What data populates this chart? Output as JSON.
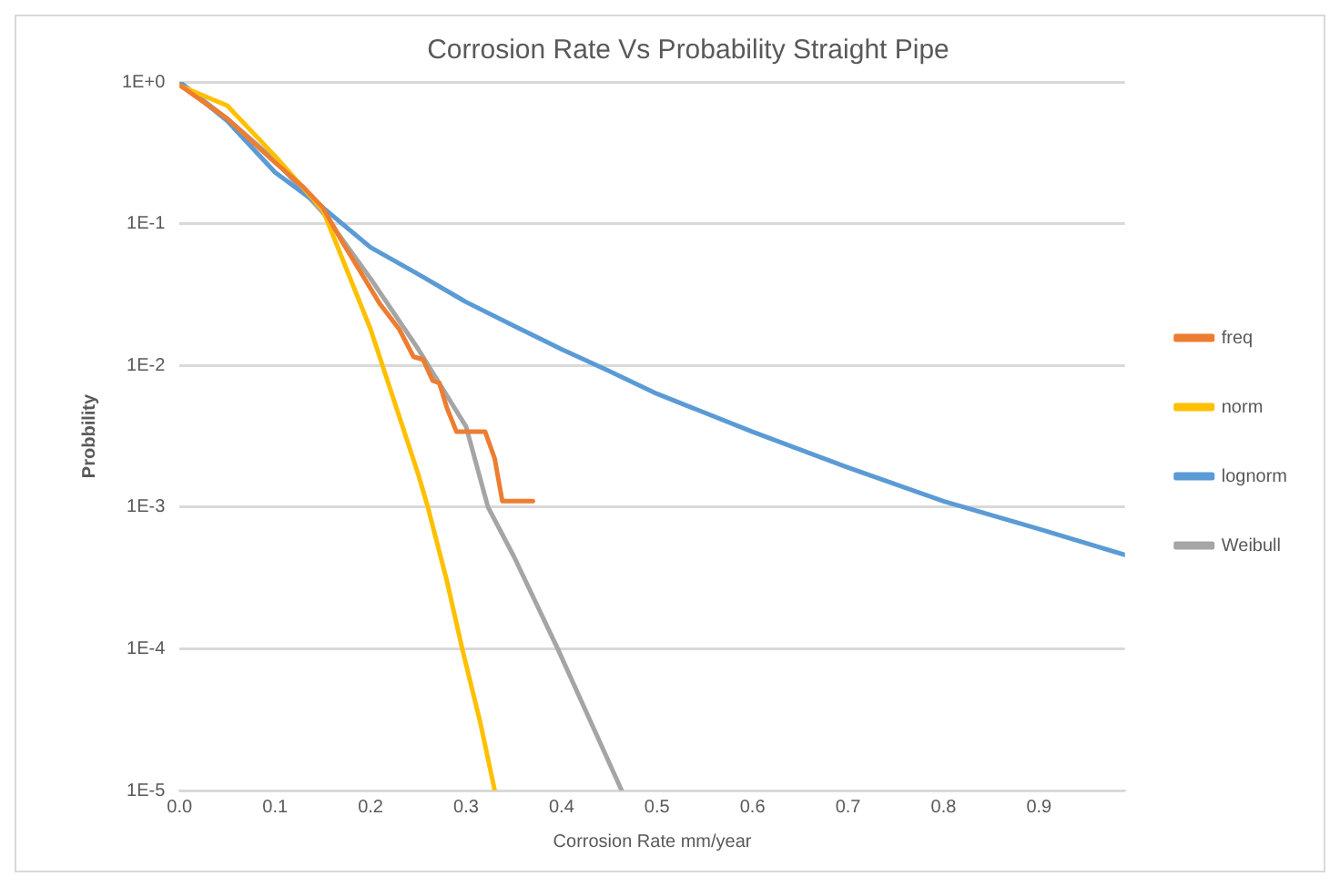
{
  "chart_data": {
    "type": "line",
    "title": "Corrosion Rate Vs Probability Straight Pipe",
    "xlabel": "Corrosion Rate mm/year",
    "ylabel": "Probbility",
    "series": [
      {
        "name": "freq",
        "color": "#ed7d31",
        "x": [
          0,
          0.05,
          0.1,
          0.13,
          0.15,
          0.17,
          0.19,
          0.21,
          0.23,
          0.245,
          0.255,
          0.265,
          0.272,
          0.28,
          0.29,
          0.32,
          0.33,
          0.338,
          0.37
        ],
        "values": [
          0.95,
          0.55,
          0.27,
          0.18,
          0.13,
          0.075,
          0.045,
          0.027,
          0.018,
          0.0115,
          0.011,
          0.0078,
          0.0075,
          0.005,
          0.0034,
          0.0034,
          0.0022,
          0.0011,
          0.0011
        ]
      },
      {
        "name": "norm",
        "color": "#ffc000",
        "x": [
          0,
          0.05,
          0.1,
          0.15,
          0.2,
          0.25,
          0.26,
          0.28,
          0.296,
          0.315,
          0.33
        ],
        "values": [
          0.94,
          0.68,
          0.3,
          0.125,
          0.018,
          0.0017,
          0.001,
          0.0003,
          0.0001,
          3e-05,
          1e-05
        ]
      },
      {
        "name": "lognorm",
        "color": "#5b9bd5",
        "x": [
          0,
          0.05,
          0.1,
          0.15,
          0.2,
          0.25,
          0.3,
          0.35,
          0.4,
          0.45,
          0.5,
          0.6,
          0.7,
          0.8,
          0.9,
          0.99
        ],
        "values": [
          1,
          0.53,
          0.23,
          0.13,
          0.068,
          0.044,
          0.028,
          0.019,
          0.013,
          0.0091,
          0.0063,
          0.0034,
          0.0019,
          0.0011,
          0.0007,
          0.00046
        ]
      },
      {
        "name": "Weibull",
        "color": "#a5a5a5",
        "x": [
          0,
          0.05,
          0.1,
          0.15,
          0.2,
          0.25,
          0.3,
          0.323,
          0.35,
          0.396,
          0.463
        ],
        "values": [
          1,
          0.55,
          0.28,
          0.12,
          0.041,
          0.013,
          0.0037,
          0.001,
          0.00045,
          0.0001,
          1e-05
        ]
      }
    ],
    "xlim": [
      0,
      0.99
    ],
    "xticks": [
      {
        "value": 0,
        "label": "0.0"
      },
      0.1,
      0.2,
      0.3,
      0.4,
      0.5,
      0.6,
      0.7,
      0.8,
      0.9
    ],
    "ylim": [
      1e-05,
      1
    ],
    "yticks": [
      {
        "value": 1e-05,
        "label": "1E-5"
      },
      {
        "value": 0.0001,
        "label": "1E-4"
      },
      {
        "value": 0.001,
        "label": "1E-3"
      },
      {
        "value": 0.01,
        "label": "1E-2"
      },
      {
        "value": 0.1,
        "label": "1E-1"
      },
      {
        "value": 1,
        "label": "1E+0"
      }
    ],
    "log": "y",
    "grid": "y",
    "legend": "right",
    "marker": "none",
    "line_style": "solid"
  }
}
